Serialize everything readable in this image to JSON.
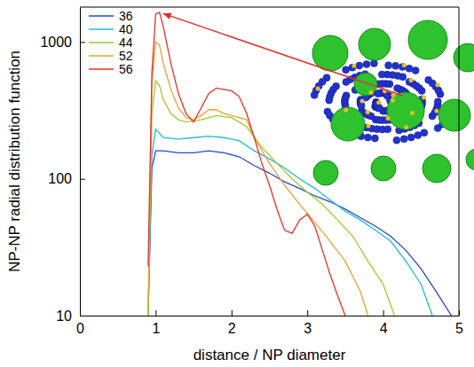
{
  "chart_data": {
    "type": "line",
    "x_label": "distance / NP diameter",
    "y_label": "NP-NP radial distribution function",
    "xlim": [
      0,
      5
    ],
    "xticks": [
      0,
      1,
      2,
      3,
      4,
      5
    ],
    "ylim": [
      10,
      1800
    ],
    "yticks": [
      10,
      100,
      1000
    ],
    "log": "y",
    "grid": false,
    "legend": "upper left",
    "series": [
      {
        "name": "36",
        "color": "#2b44d6",
        "x": [
          0.9,
          0.95,
          1.0,
          1.1,
          1.3,
          1.5,
          1.7,
          1.9,
          2.1,
          2.3,
          2.5,
          2.7,
          2.9,
          3.1,
          3.3,
          3.5,
          3.7,
          3.9,
          4.1,
          4.3,
          4.5,
          4.7,
          4.9
        ],
        "values": [
          10,
          120,
          160,
          160,
          155,
          155,
          160,
          155,
          145,
          125,
          110,
          95,
          85,
          75,
          68,
          60,
          52,
          45,
          38,
          30,
          22,
          15,
          10
        ]
      },
      {
        "name": "40",
        "color": "#1cbcd0",
        "x": [
          0.9,
          0.95,
          1.0,
          1.05,
          1.1,
          1.3,
          1.5,
          1.7,
          1.9,
          2.1,
          2.3,
          2.5,
          2.7,
          2.9,
          3.1,
          3.3,
          3.5,
          3.7,
          3.9,
          4.1,
          4.3,
          4.5,
          4.65
        ],
        "values": [
          10,
          150,
          230,
          215,
          200,
          195,
          200,
          205,
          200,
          190,
          160,
          140,
          120,
          100,
          85,
          70,
          58,
          50,
          42,
          35,
          25,
          17,
          10
        ]
      },
      {
        "name": "44",
        "color": "#9ccc2a",
        "x": [
          0.9,
          0.95,
          1.0,
          1.05,
          1.1,
          1.2,
          1.3,
          1.4,
          1.6,
          1.8,
          2.0,
          2.2,
          2.4,
          2.6,
          2.8,
          3.0,
          3.2,
          3.4,
          3.6,
          3.8,
          4.0,
          4.1,
          4.15
        ],
        "values": [
          10,
          300,
          520,
          480,
          380,
          300,
          270,
          260,
          270,
          290,
          280,
          240,
          170,
          130,
          100,
          80,
          65,
          50,
          38,
          25,
          17,
          12,
          10
        ]
      },
      {
        "name": "52",
        "color": "#e8a234",
        "x": [
          0.9,
          0.95,
          1.0,
          1.05,
          1.1,
          1.2,
          1.3,
          1.4,
          1.5,
          1.6,
          1.7,
          1.8,
          1.9,
          2.0,
          2.1,
          2.2,
          2.3,
          2.5,
          2.7,
          2.9,
          3.1,
          3.3,
          3.5,
          3.7,
          3.8
        ],
        "values": [
          10,
          500,
          1000,
          950,
          700,
          450,
          330,
          280,
          270,
          290,
          320,
          320,
          300,
          290,
          280,
          270,
          200,
          130,
          90,
          65,
          48,
          35,
          25,
          15,
          10
        ]
      },
      {
        "name": "56",
        "color": "#e8302a",
        "x": [
          0.9,
          0.95,
          1.0,
          1.05,
          1.1,
          1.2,
          1.3,
          1.4,
          1.5,
          1.6,
          1.7,
          1.8,
          1.9,
          2.0,
          2.1,
          2.2,
          2.3,
          2.4,
          2.5,
          2.6,
          2.7,
          2.8,
          2.9,
          3.0,
          3.1,
          3.2,
          3.3,
          3.4,
          3.5
        ],
        "values": [
          23,
          600,
          1600,
          1650,
          1300,
          700,
          420,
          300,
          260,
          330,
          420,
          460,
          450,
          440,
          400,
          300,
          200,
          130,
          90,
          60,
          42,
          40,
          50,
          55,
          45,
          30,
          20,
          14,
          10
        ]
      }
    ]
  }
}
